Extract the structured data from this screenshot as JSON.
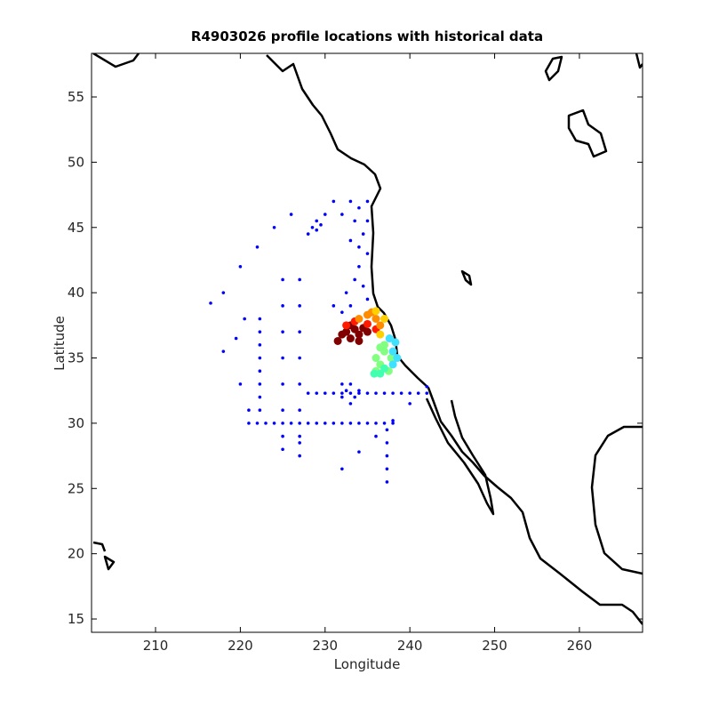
{
  "chart_data": {
    "type": "scatter",
    "title": "R4903026 profile locations with historical data",
    "x_label": "Longitude",
    "y_label": "Latitude",
    "xlim": [
      202.45,
      267.45
    ],
    "ylim": [
      13.98,
      58.34
    ],
    "xticks": [
      210,
      220,
      230,
      240,
      250,
      260
    ],
    "yticks": [
      15,
      20,
      25,
      30,
      35,
      40,
      45,
      50,
      55
    ],
    "grid": false,
    "series": [
      {
        "color": "#0000ff",
        "size": 1.8,
        "x": [
          221,
          222,
          223,
          224,
          225,
          226,
          227,
          228,
          229,
          230,
          231,
          232,
          233,
          234,
          235,
          236,
          237,
          238,
          228,
          229,
          230,
          231,
          232,
          233,
          234,
          235,
          236,
          237,
          238,
          239,
          240,
          241,
          242,
          222.3,
          222.3,
          222.3,
          222.3,
          222.3,
          222.3,
          222.3,
          222.3,
          225,
          225,
          225,
          225,
          225,
          225,
          225,
          225,
          227,
          227,
          227,
          227,
          227,
          227,
          227,
          227,
          227,
          237.3,
          237.3,
          237.3,
          237.3,
          237.3,
          242,
          240,
          238,
          236,
          234,
          232,
          233,
          234,
          235,
          233.5,
          234.5,
          235,
          234,
          233.5,
          234.5,
          235,
          233,
          232,
          231,
          232.5,
          234,
          235,
          233,
          232,
          231,
          228.5,
          229,
          229.5,
          229,
          228,
          230,
          232,
          232.5,
          233,
          233.5,
          233,
          232,
          234,
          216.5,
          218,
          220,
          222,
          224,
          226,
          220.5,
          219.5,
          218,
          220,
          221
        ],
        "values": [
          30,
          30,
          30,
          30,
          30,
          30,
          30,
          30,
          30,
          30,
          30,
          30,
          30,
          30,
          30,
          30,
          30,
          30,
          32.3,
          32.3,
          32.3,
          32.3,
          32.3,
          32.3,
          32.3,
          32.3,
          32.3,
          32.3,
          32.3,
          32.3,
          32.3,
          32.3,
          32.3,
          31,
          32,
          33,
          34,
          35,
          36,
          37,
          38,
          28,
          29,
          31,
          33,
          35,
          37,
          39,
          41,
          27.5,
          28.5,
          29,
          31,
          33,
          35,
          37,
          39,
          41,
          25.5,
          26.5,
          27.5,
          28.5,
          29.5,
          32.8,
          31.5,
          30.2,
          29,
          27.8,
          26.5,
          47,
          46.5,
          47,
          45.5,
          44.5,
          43,
          42,
          41,
          40.5,
          39.5,
          39,
          38.5,
          39,
          40,
          43.5,
          45.5,
          44,
          46,
          47,
          45,
          44.8,
          45.2,
          45.5,
          44.5,
          46,
          32,
          32.5,
          33,
          32,
          31.5,
          33,
          32.5,
          39.2,
          40,
          42,
          43.5,
          45,
          46,
          38,
          36.5,
          35.5,
          33,
          31
        ]
      },
      {
        "color": "#800000",
        "size": 4.5,
        "x": [
          232,
          232.5,
          233,
          233.5,
          234,
          234.5,
          235,
          231.5,
          233,
          234
        ],
        "values": [
          36.8,
          37,
          36.5,
          37.2,
          36.8,
          37.3,
          37,
          36.3,
          37.5,
          36.3
        ]
      },
      {
        "color": "#ff1a00",
        "size": 4.5,
        "x": [
          232.5,
          233.5,
          235,
          236
        ],
        "values": [
          37.5,
          37.8,
          37.6,
          37.2
        ]
      },
      {
        "color": "#ff8c00",
        "size": 4.5,
        "x": [
          234,
          235,
          236,
          236.5,
          235.5
        ],
        "values": [
          38,
          38.3,
          38,
          37.5,
          38.5
        ]
      },
      {
        "color": "#ffd000",
        "size": 4.5,
        "x": [
          236,
          237,
          236.5
        ],
        "values": [
          38.6,
          38,
          36.8
        ]
      },
      {
        "color": "#80ff80",
        "size": 4.5,
        "x": [
          236,
          236.5,
          237,
          237.5,
          236,
          237,
          236.5,
          237.8
        ],
        "values": [
          35,
          34.5,
          35.5,
          34,
          34,
          36,
          35.8,
          35
        ]
      },
      {
        "color": "#40e0ff",
        "size": 4.5,
        "x": [
          238,
          238.3,
          238,
          238.5,
          237.6
        ],
        "values": [
          35.5,
          36.2,
          34.5,
          35,
          36.5
        ]
      },
      {
        "color": "#40ffb0",
        "size": 4.5,
        "x": [
          235.8,
          236.5,
          237
        ],
        "values": [
          33.8,
          33.8,
          34.2
        ]
      }
    ]
  }
}
